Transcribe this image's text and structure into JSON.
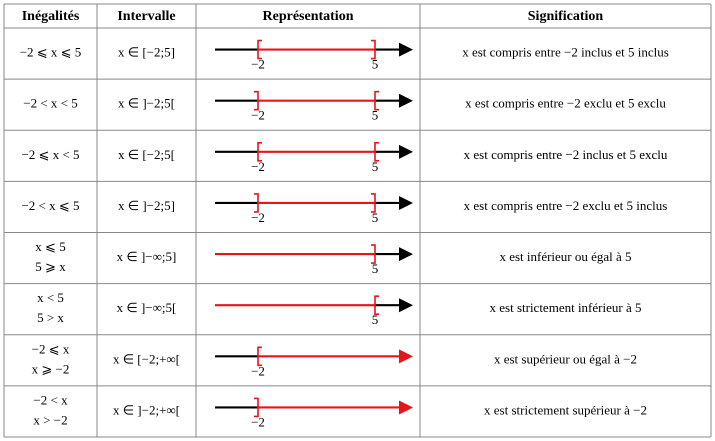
{
  "table": {
    "header": [
      "Inégalités",
      "Intervalle",
      "Représentation",
      "Signification"
    ],
    "rows": [
      {
        "inequality": [
          "−2 ⩽ x ⩽ 5"
        ],
        "interval": "x ∈ [−2;5]",
        "representation": [
          "−2",
          "5"
        ],
        "meaning": "x est compris entre −2 inclus et 5 inclus"
      },
      {
        "inequality": [
          "−2 < x < 5"
        ],
        "interval": "x ∈ ]−2;5[",
        "representation": [
          "−2",
          "5"
        ],
        "meaning": "x est compris entre −2 exclu et 5 exclu"
      },
      {
        "inequality": [
          "−2 ⩽ x < 5"
        ],
        "interval": "x ∈ [−2;5[",
        "representation": [
          "−2",
          "5"
        ],
        "meaning": "x est compris entre −2 inclus et 5 exclu"
      },
      {
        "inequality": [
          "−2 < x ⩽ 5"
        ],
        "interval": "x ∈ ]−2;5]",
        "representation": [
          "−2",
          "5"
        ],
        "meaning": "x est compris entre −2 exclu et 5 inclus"
      },
      {
        "inequality": [
          "x ⩽ 5",
          "5 ⩾ x"
        ],
        "interval": "x ∈ ]−∞;5]",
        "representation": [
          "5"
        ],
        "meaning": "x est inférieur ou égal à 5"
      },
      {
        "inequality": [
          "x < 5",
          "5 > x"
        ],
        "interval": "x ∈ ]−∞;5[",
        "representation": [
          "5"
        ],
        "meaning": "x est strictement inférieur à 5"
      },
      {
        "inequality": [
          "−2 ⩽ x",
          "x ⩾ −2"
        ],
        "interval": "x ∈ [−2;+∞[",
        "representation": [
          "−2"
        ],
        "meaning": "x est supérieur ou égal à −2"
      },
      {
        "inequality": [
          "−2 < x",
          "x > −2"
        ],
        "interval": "x ∈ ]−2;+∞[",
        "representation": [
          "−2"
        ],
        "meaning": "x est strictement supérieur à −2"
      }
    ]
  }
}
